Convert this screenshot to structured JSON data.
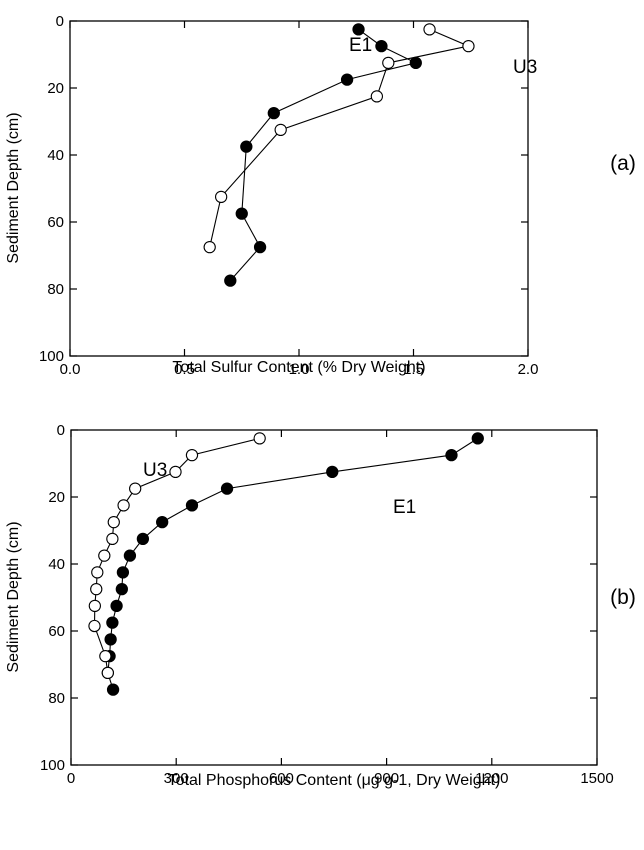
{
  "chart_data": [
    {
      "type": "line",
      "panel_label": "(a)",
      "xlabel": "Total Sulfur Content (% Dry Weight)",
      "ylabel": "Sediment Depth (cm)",
      "xlim": [
        0,
        2.0
      ],
      "ylim": [
        0,
        100
      ],
      "y_inverted": true,
      "x_ticks": [
        "0.0",
        "0.5",
        "1.0",
        "1.5",
        "2.0"
      ],
      "y_ticks": [
        "0",
        "20",
        "40",
        "60",
        "80",
        "100"
      ],
      "grid": false,
      "series": [
        {
          "name": "E1",
          "marker": "filled",
          "points": [
            [
              1.26,
              2.5
            ],
            [
              1.36,
              7.5
            ],
            [
              1.51,
              12.5
            ],
            [
              1.21,
              17.5
            ],
            [
              0.89,
              27.5
            ],
            [
              0.77,
              37.5
            ],
            [
              0.75,
              57.5
            ],
            [
              0.83,
              67.5
            ],
            [
              0.7,
              77.5
            ]
          ]
        },
        {
          "name": "U3",
          "marker": "open",
          "points": [
            [
              1.57,
              2.5
            ],
            [
              1.74,
              7.5
            ],
            [
              1.39,
              12.5
            ],
            [
              1.34,
              22.5
            ],
            [
              0.92,
              32.5
            ],
            [
              0.66,
              52.5
            ],
            [
              0.61,
              67.5
            ]
          ]
        }
      ]
    },
    {
      "type": "line",
      "panel_label": "(b)",
      "xlabel": "Total Phosphorus Content (μg g-1, Dry Weight)",
      "ylabel": "Sediment Depth (cm)",
      "xlim": [
        0,
        1500
      ],
      "ylim": [
        0,
        100
      ],
      "y_inverted": true,
      "x_ticks": [
        "0",
        "300",
        "600",
        "900",
        "1200",
        "1500"
      ],
      "y_ticks": [
        "0",
        "20",
        "40",
        "60",
        "80",
        "100"
      ],
      "grid": false,
      "series": [
        {
          "name": "E1",
          "marker": "filled",
          "points": [
            [
              1160,
              2.5
            ],
            [
              1085,
              7.5
            ],
            [
              745,
              12.5
            ],
            [
              445,
              17.5
            ],
            [
              345,
              22.5
            ],
            [
              260,
              27.5
            ],
            [
              205,
              32.5
            ],
            [
              168,
              37.5
            ],
            [
              148,
              42.5
            ],
            [
              145,
              47.5
            ],
            [
              130,
              52.5
            ],
            [
              118,
              57.5
            ],
            [
              113,
              62.5
            ],
            [
              110,
              67.5
            ],
            [
              105,
              72.5
            ],
            [
              120,
              77.5
            ]
          ]
        },
        {
          "name": "U3",
          "marker": "open",
          "points": [
            [
              538,
              2.5
            ],
            [
              345,
              7.5
            ],
            [
              298,
              12.5
            ],
            [
              183,
              17.5
            ],
            [
              150,
              22.5
            ],
            [
              122,
              27.5
            ],
            [
              118,
              32.5
            ],
            [
              95,
              37.5
            ],
            [
              75,
              42.5
            ],
            [
              72,
              47.5
            ],
            [
              68,
              52.5
            ],
            [
              67,
              58.5
            ],
            [
              98,
              67.5
            ],
            [
              105,
              72.5
            ]
          ]
        }
      ]
    }
  ]
}
